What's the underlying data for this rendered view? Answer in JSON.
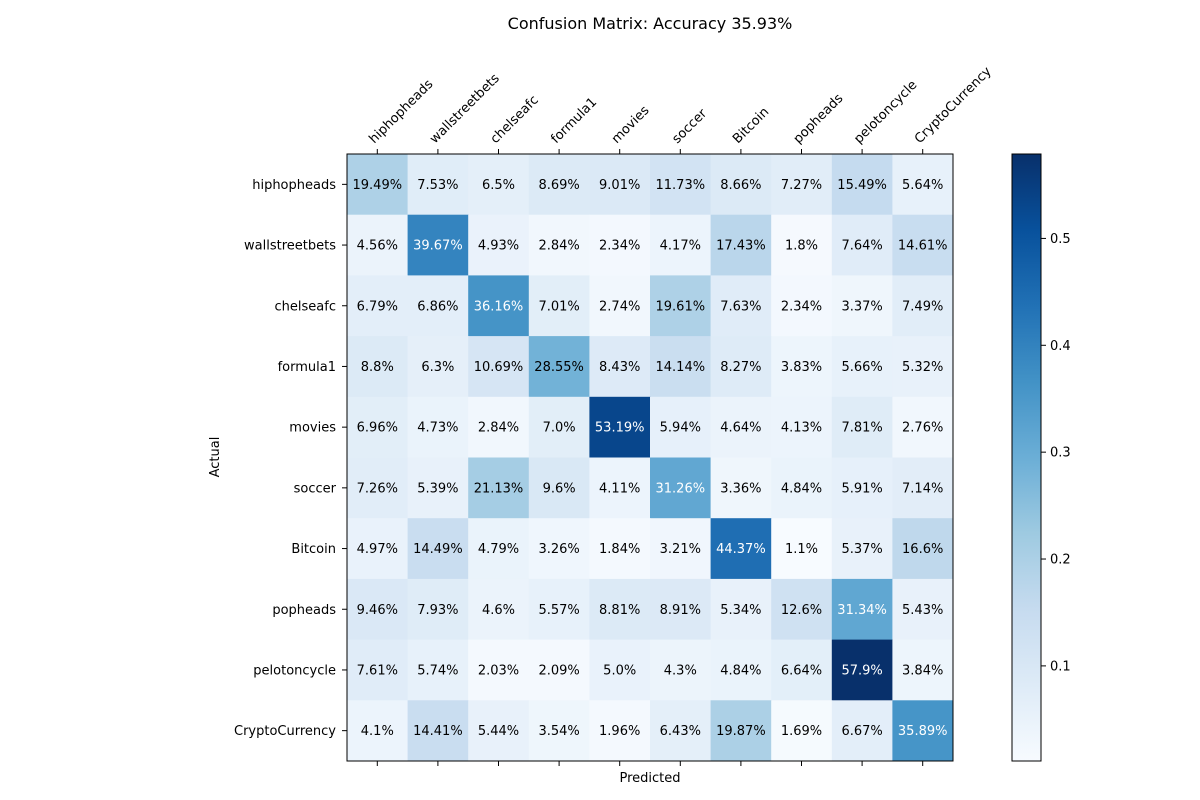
{
  "chart_data": {
    "type": "heatmap",
    "title": "Confusion Matrix: Accuracy 35.93%",
    "xlabel": "Predicted",
    "ylabel": "Actual",
    "colormap": "Blues",
    "x_tick_position": "top",
    "colorbar_position": "right",
    "colorbar_range": [
      0.011,
      0.579
    ],
    "colorbar_ticks": [
      "0.1",
      "0.2",
      "0.3",
      "0.4",
      "0.5"
    ],
    "x_categories": [
      "hiphopheads",
      "wallstreetbets",
      "chelseafc",
      "formula1",
      "movies",
      "soccer",
      "Bitcoin",
      "popheads",
      "pelotoncycle",
      "CryptoCurrency"
    ],
    "y_categories": [
      "hiphopheads",
      "wallstreetbets",
      "chelseafc",
      "formula1",
      "movies",
      "soccer",
      "Bitcoin",
      "popheads",
      "pelotoncycle",
      "CryptoCurrency"
    ],
    "values": [
      [
        0.1949,
        0.0753,
        0.065,
        0.0869,
        0.0901,
        0.1173,
        0.0866,
        0.0727,
        0.1549,
        0.0564
      ],
      [
        0.0456,
        0.3967,
        0.0493,
        0.0284,
        0.0234,
        0.0417,
        0.1743,
        0.018,
        0.0764,
        0.1461
      ],
      [
        0.0679,
        0.0686,
        0.3616,
        0.0701,
        0.0274,
        0.1961,
        0.0763,
        0.0234,
        0.0337,
        0.0749
      ],
      [
        0.088,
        0.063,
        0.1069,
        0.2855,
        0.0843,
        0.1414,
        0.0827,
        0.0383,
        0.0566,
        0.0532
      ],
      [
        0.0696,
        0.0473,
        0.0284,
        0.07,
        0.5319,
        0.0594,
        0.0464,
        0.0413,
        0.0781,
        0.0276
      ],
      [
        0.0726,
        0.0539,
        0.2113,
        0.096,
        0.0411,
        0.3126,
        0.0336,
        0.0484,
        0.0591,
        0.0714
      ],
      [
        0.0497,
        0.1449,
        0.0479,
        0.0326,
        0.0184,
        0.0321,
        0.4437,
        0.011,
        0.0537,
        0.166
      ],
      [
        0.0946,
        0.0793,
        0.046,
        0.0557,
        0.0881,
        0.0891,
        0.0534,
        0.126,
        0.3134,
        0.0543
      ],
      [
        0.0761,
        0.0574,
        0.0203,
        0.0209,
        0.05,
        0.043,
        0.0484,
        0.0664,
        0.579,
        0.0384
      ],
      [
        0.041,
        0.1441,
        0.0544,
        0.0354,
        0.0196,
        0.0643,
        0.1987,
        0.0169,
        0.0667,
        0.3589
      ]
    ],
    "cell_labels": [
      [
        "19.49%",
        "7.53%",
        "6.5%",
        "8.69%",
        "9.01%",
        "11.73%",
        "8.66%",
        "7.27%",
        "15.49%",
        "5.64%"
      ],
      [
        "4.56%",
        "39.67%",
        "4.93%",
        "2.84%",
        "2.34%",
        "4.17%",
        "17.43%",
        "1.8%",
        "7.64%",
        "14.61%"
      ],
      [
        "6.79%",
        "6.86%",
        "36.16%",
        "7.01%",
        "2.74%",
        "19.61%",
        "7.63%",
        "2.34%",
        "3.37%",
        "7.49%"
      ],
      [
        "8.8%",
        "6.3%",
        "10.69%",
        "28.55%",
        "8.43%",
        "14.14%",
        "8.27%",
        "3.83%",
        "5.66%",
        "5.32%"
      ],
      [
        "6.96%",
        "4.73%",
        "2.84%",
        "7.0%",
        "53.19%",
        "5.94%",
        "4.64%",
        "4.13%",
        "7.81%",
        "2.76%"
      ],
      [
        "7.26%",
        "5.39%",
        "21.13%",
        "9.6%",
        "4.11%",
        "31.26%",
        "3.36%",
        "4.84%",
        "5.91%",
        "7.14%"
      ],
      [
        "4.97%",
        "14.49%",
        "4.79%",
        "3.26%",
        "1.84%",
        "3.21%",
        "44.37%",
        "1.1%",
        "5.37%",
        "16.6%"
      ],
      [
        "9.46%",
        "7.93%",
        "4.6%",
        "5.57%",
        "8.81%",
        "8.91%",
        "5.34%",
        "12.6%",
        "31.34%",
        "5.43%"
      ],
      [
        "7.61%",
        "5.74%",
        "2.03%",
        "2.09%",
        "5.0%",
        "4.3%",
        "4.84%",
        "6.64%",
        "57.9%",
        "3.84%"
      ],
      [
        "4.1%",
        "14.41%",
        "5.44%",
        "3.54%",
        "1.96%",
        "6.43%",
        "19.87%",
        "1.69%",
        "6.67%",
        "35.89%"
      ]
    ]
  }
}
